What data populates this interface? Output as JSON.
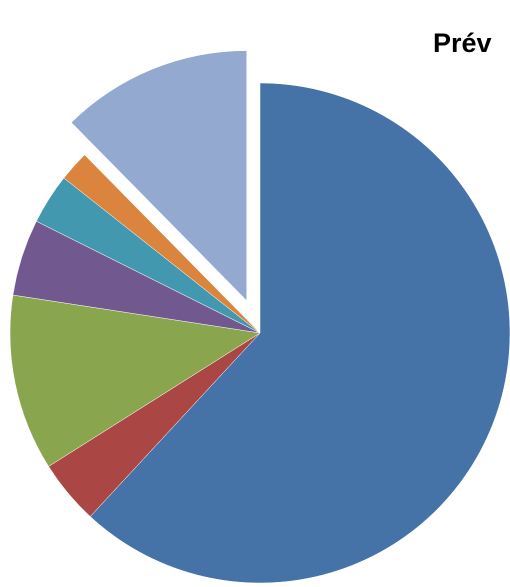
{
  "chart_data": {
    "type": "pie",
    "title": "Prév",
    "start_angle_deg": 0,
    "direction": "clockwise",
    "legend": "none",
    "slices": [
      {
        "value": 62.5,
        "color": "#4572A7",
        "exploded": false
      },
      {
        "value": 4.2,
        "color": "#AA4643",
        "exploded": false
      },
      {
        "value": 11.5,
        "color": "#89A54E",
        "exploded": false
      },
      {
        "value": 5.0,
        "color": "#71588F",
        "exploded": false
      },
      {
        "value": 3.3,
        "color": "#4198AF",
        "exploded": false
      },
      {
        "value": 2.0,
        "color": "#DB843D",
        "exploded": false
      },
      {
        "value": 12.5,
        "color": "#93A9CF",
        "exploded": true
      }
    ]
  }
}
